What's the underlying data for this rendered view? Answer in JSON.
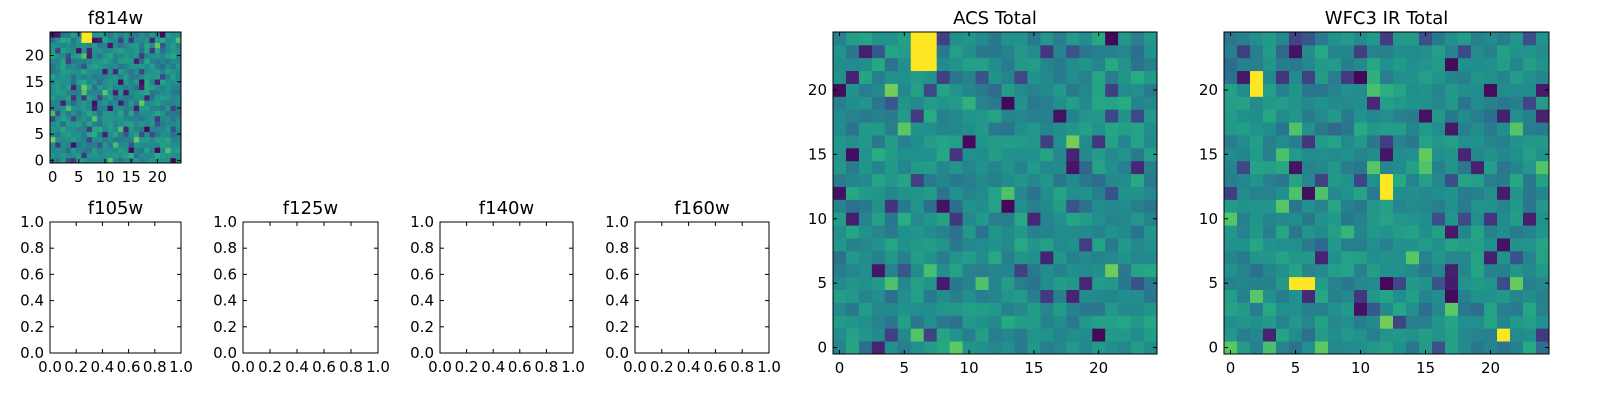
{
  "chart_data": [
    {
      "type": "heatmap",
      "title": "f814w",
      "xlim": [
        0,
        24
      ],
      "ylim": [
        0,
        24
      ],
      "xticks": [
        "0",
        "5",
        "10",
        "15",
        "20"
      ],
      "yticks": [
        "0",
        "5",
        "10",
        "15",
        "20"
      ],
      "colormap": "viridis",
      "grid_size": [
        25,
        25
      ],
      "bright_cells": [
        [
          6,
          23
        ],
        [
          7,
          23
        ],
        [
          6,
          24
        ],
        [
          7,
          24
        ]
      ]
    },
    {
      "type": "scatter",
      "title": "f105w",
      "xlim": [
        0.0,
        1.0
      ],
      "ylim": [
        0.0,
        1.0
      ],
      "xticks": [
        "0.0",
        "0.2",
        "0.4",
        "0.6",
        "0.8",
        "1.0"
      ],
      "yticks": [
        "0.0",
        "0.2",
        "0.4",
        "0.6",
        "0.8",
        "1.0"
      ],
      "series": []
    },
    {
      "type": "scatter",
      "title": "f125w",
      "xlim": [
        0.0,
        1.0
      ],
      "ylim": [
        0.0,
        1.0
      ],
      "xticks": [
        "0.0",
        "0.2",
        "0.4",
        "0.6",
        "0.8",
        "1.0"
      ],
      "yticks": [
        "0.0",
        "0.2",
        "0.4",
        "0.6",
        "0.8",
        "1.0"
      ],
      "series": []
    },
    {
      "type": "scatter",
      "title": "f140w",
      "xlim": [
        0.0,
        1.0
      ],
      "ylim": [
        0.0,
        1.0
      ],
      "xticks": [
        "0.0",
        "0.2",
        "0.4",
        "0.6",
        "0.8",
        "1.0"
      ],
      "yticks": [
        "0.0",
        "0.2",
        "0.4",
        "0.6",
        "0.8",
        "1.0"
      ],
      "series": []
    },
    {
      "type": "scatter",
      "title": "f160w",
      "xlim": [
        0.0,
        1.0
      ],
      "ylim": [
        0.0,
        1.0
      ],
      "xticks": [
        "0.0",
        "0.2",
        "0.4",
        "0.6",
        "0.8",
        "1.0"
      ],
      "yticks": [
        "0.0",
        "0.2",
        "0.4",
        "0.6",
        "0.8",
        "1.0"
      ],
      "series": []
    },
    {
      "type": "heatmap",
      "title": "ACS Total",
      "xlim": [
        0,
        24
      ],
      "ylim": [
        0,
        24
      ],
      "xticks": [
        "0",
        "5",
        "10",
        "15",
        "20"
      ],
      "yticks": [
        "0",
        "5",
        "10",
        "15",
        "20"
      ],
      "colormap": "viridis",
      "grid_size": [
        25,
        25
      ],
      "bright_cells": [
        [
          6,
          22
        ],
        [
          7,
          22
        ],
        [
          6,
          23
        ],
        [
          7,
          23
        ],
        [
          6,
          24
        ],
        [
          7,
          24
        ]
      ]
    },
    {
      "type": "heatmap",
      "title": "WFC3 IR Total",
      "xlim": [
        0,
        24
      ],
      "ylim": [
        0,
        24
      ],
      "xticks": [
        "0",
        "5",
        "10",
        "15",
        "20"
      ],
      "yticks": [
        "0",
        "5",
        "10",
        "15",
        "20"
      ],
      "colormap": "viridis",
      "grid_size": [
        25,
        25
      ],
      "bright_cells": [
        [
          2,
          20
        ],
        [
          2,
          21
        ],
        [
          12,
          12
        ],
        [
          12,
          13
        ],
        [
          5,
          5
        ],
        [
          6,
          5
        ],
        [
          21,
          1
        ]
      ]
    }
  ],
  "colors": {
    "background": "#ffffff",
    "axis": "#000000",
    "viridis_low": "#440154",
    "viridis_mid": "#21918c",
    "viridis_high": "#fde725"
  }
}
